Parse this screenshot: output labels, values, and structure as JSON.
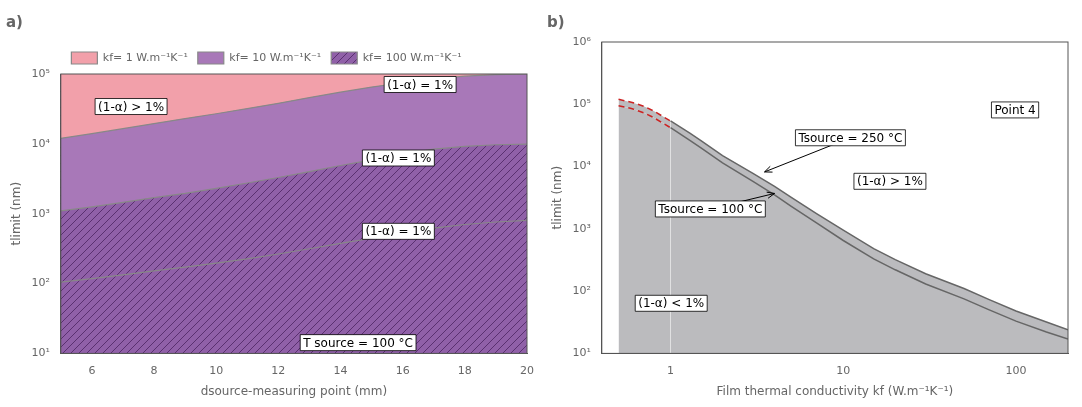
{
  "chart_data": [
    {
      "type": "area",
      "title": "a)",
      "xlabel": "dsource-measuring point (mm)",
      "ylabel": "tlimit (nm)",
      "log": "y",
      "grid": false,
      "legend": "top",
      "color": "#888888",
      "xlim": [
        5,
        20
      ],
      "ylim": [
        10,
        100000
      ],
      "xticks": [
        6,
        8,
        10,
        12,
        14,
        16,
        18,
        20
      ],
      "yticks": [
        {
          "value": 10,
          "label": "10¹"
        },
        {
          "value": 100,
          "label": "10²"
        },
        {
          "value": 1000,
          "label": "10³"
        },
        {
          "value": 10000,
          "label": "10⁴"
        },
        {
          "value": 100000,
          "label": "10⁵"
        }
      ],
      "x": [
        5,
        6,
        7,
        8,
        9,
        10,
        11,
        12,
        13,
        14,
        15,
        16,
        17,
        18,
        19,
        20
      ],
      "series": [
        {
          "name": "kf= 1 W.m⁻¹K⁻¹",
          "color": "#f2a0aa",
          "values": [
            12000,
            14000,
            16500,
            19500,
            23000,
            27000,
            32000,
            38000,
            46000,
            55000,
            65000,
            75000,
            85000,
            93000,
            98000,
            100000
          ]
        },
        {
          "name": "kf= 10 W.m⁻¹K⁻¹",
          "color": "#a878b8",
          "values": [
            1100,
            1250,
            1450,
            1700,
            1950,
            2300,
            2750,
            3300,
            4000,
            4900,
            5900,
            7200,
            8400,
            9200,
            9700,
            9900
          ]
        },
        {
          "name": "kf= 100 W.m⁻¹K⁻¹",
          "color": "#9060a8",
          "hatch_color": "#5a3070",
          "values": [
            105,
            118,
            133,
            152,
            172,
            196,
            226,
            265,
            315,
            375,
            445,
            530,
            620,
            700,
            760,
            800
          ]
        }
      ],
      "annotations": [
        {
          "text": "(1-α) > 1%",
          "x": 6.2,
          "y": 30000
        },
        {
          "text": "(1-α) = 1%",
          "x": 15.5,
          "y": 62000
        },
        {
          "text": "(1-α) = 1%",
          "x": 14.8,
          "y": 5500
        },
        {
          "text": "(1-α) = 1%",
          "x": 14.8,
          "y": 490
        },
        {
          "text": "T source = 100 °C",
          "x": 12.8,
          "y": 12.5
        }
      ]
    },
    {
      "type": "area",
      "title": "b)",
      "xlabel": "Film thermal conductivity kf (W.m⁻¹K⁻¹)",
      "ylabel": "tlimit (nm)",
      "log": true,
      "grid": false,
      "legend": false,
      "color": "#666666",
      "xlim": [
        0.4,
        200
      ],
      "ylim": [
        10,
        1000000
      ],
      "xticks": [
        1,
        10,
        100
      ],
      "yticks": [
        {
          "value": 10,
          "label": "10¹"
        },
        {
          "value": 100,
          "label": "10²"
        },
        {
          "value": 1000,
          "label": "10³"
        },
        {
          "value": 10000,
          "label": "10⁴"
        },
        {
          "value": 100000,
          "label": "10⁵"
        },
        {
          "value": 1000000,
          "label": "10⁶"
        }
      ],
      "x": [
        0.5,
        0.6,
        0.7,
        0.8,
        0.9,
        1.0,
        1.3,
        1.5,
        2.0,
        3.0,
        4.0,
        5.0,
        7.0,
        10.0,
        15.0,
        20.0,
        30.0,
        50.0,
        70.0,
        100.0,
        150.0,
        200.0
      ],
      "series": [
        {
          "color": "#bbbbbe",
          "values": [
            95000,
            85000,
            73000,
            61000,
            50000,
            42000,
            26000,
            20000,
            11500,
            5800,
            3500,
            2300,
            1250,
            650,
            330,
            220,
            130,
            75,
            50,
            33,
            22,
            17
          ],
          "segments": [
            {
              "x_max": 1.2,
              "color": "#cc2222",
              "line_style": "dashed"
            }
          ]
        },
        {
          "color": "#bbbbbe",
          "values": [
            120000,
            107000,
            93000,
            78000,
            64000,
            54000,
            34000,
            26000,
            15000,
            7800,
            4800,
            3200,
            1750,
            950,
            480,
            320,
            190,
            110,
            73,
            48,
            32,
            24
          ],
          "segments": [
            {
              "x_max": 1.2,
              "color": "#cc2222",
              "line_style": "dashed"
            }
          ]
        }
      ],
      "annotations": [
        {
          "text": "(1-α) > 1%",
          "x": 12,
          "y": 5000
        },
        {
          "text": "(1-α) < 1%",
          "x": 0.65,
          "y": 55
        },
        {
          "text": "Point 4",
          "x": 130,
          "y": 70000
        },
        {
          "text": "Tsource = 250 °C",
          "x": 5.5,
          "y": 25000,
          "arrow_x": 3.5,
          "arrow_y": 8200
        },
        {
          "text": "Tsource = 100 °C",
          "x": 0.85,
          "y": 1800,
          "arrow_x": 4.0,
          "arrow_y": 3700
        }
      ]
    }
  ]
}
